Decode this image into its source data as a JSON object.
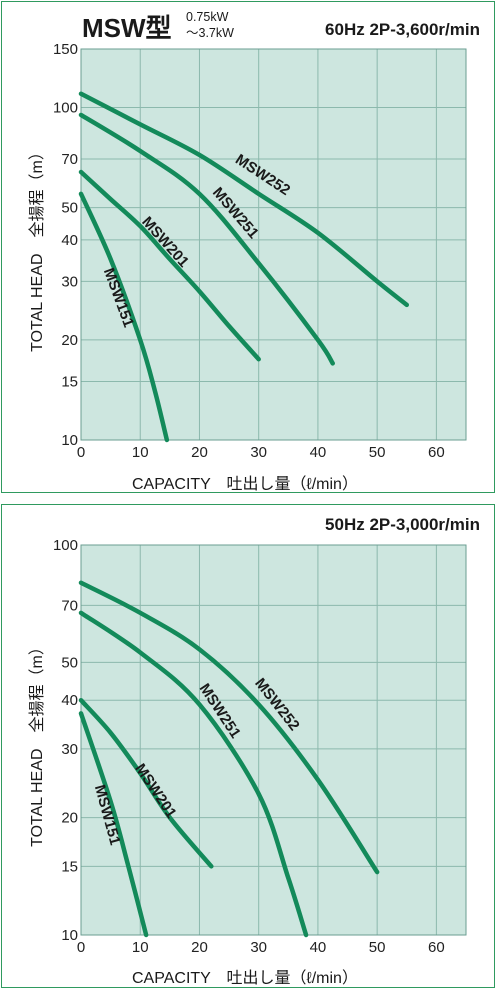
{
  "chart_data": [
    {
      "type": "line",
      "title_model": "MSW型",
      "title_power_min": "0.75kW",
      "title_power_max": "～3.7kW",
      "title_speed": "60Hz 2P-3,600r/min",
      "xlabel": "CAPACITY　吐出し量（ℓ/min）",
      "ylabel": "TOTAL HEAD　全揚程（m）",
      "xlim": [
        0,
        65
      ],
      "ylim": [
        10,
        150
      ],
      "yscale": "log",
      "xticks": [
        0,
        10,
        20,
        30,
        40,
        50,
        60
      ],
      "yticks": [
        10,
        15,
        20,
        30,
        40,
        50,
        70,
        100,
        150
      ],
      "grid": true,
      "background_color": "#cde6df",
      "line_color": "#138a5a",
      "series": [
        {
          "name": "MSW252",
          "x": [
            0,
            10,
            20,
            30,
            40,
            50,
            55
          ],
          "y": [
            110,
            89,
            72,
            55,
            42,
            30,
            25.5
          ]
        },
        {
          "name": "MSW251",
          "x": [
            0,
            10,
            20,
            30,
            40,
            42.5
          ],
          "y": [
            95,
            74,
            55,
            34,
            20,
            17
          ]
        },
        {
          "name": "MSW201",
          "x": [
            0,
            5,
            10,
            15,
            20,
            25,
            30
          ],
          "y": [
            64,
            53,
            44,
            35,
            28,
            22,
            17.5
          ]
        },
        {
          "name": "MSW151",
          "x": [
            0,
            5,
            10,
            12.5,
            14.5
          ],
          "y": [
            55,
            35,
            20,
            14,
            10
          ]
        }
      ]
    },
    {
      "type": "line",
      "title_speed": "50Hz 2P-3,000r/min",
      "xlabel": "CAPACITY　吐出し量（ℓ/min）",
      "ylabel": "TOTAL HEAD　全揚程（m）",
      "xlim": [
        0,
        65
      ],
      "ylim": [
        10,
        100
      ],
      "yscale": "log",
      "xticks": [
        0,
        10,
        20,
        30,
        40,
        50,
        60
      ],
      "yticks": [
        10,
        15,
        20,
        30,
        40,
        50,
        70,
        100
      ],
      "grid": true,
      "background_color": "#cde6df",
      "line_color": "#138a5a",
      "series": [
        {
          "name": "MSW252",
          "x": [
            0,
            10,
            20,
            30,
            40,
            50
          ],
          "y": [
            80,
            67,
            54,
            39,
            25,
            14.5
          ]
        },
        {
          "name": "MSW251",
          "x": [
            0,
            10,
            20,
            30,
            35,
            38
          ],
          "y": [
            67,
            53,
            39,
            23,
            14,
            10
          ]
        },
        {
          "name": "MSW201",
          "x": [
            0,
            5,
            10,
            15,
            22
          ],
          "y": [
            40,
            33,
            26,
            20,
            15
          ]
        },
        {
          "name": "MSW151",
          "x": [
            0,
            5,
            8,
            11
          ],
          "y": [
            37,
            22,
            15,
            10
          ]
        }
      ]
    }
  ]
}
